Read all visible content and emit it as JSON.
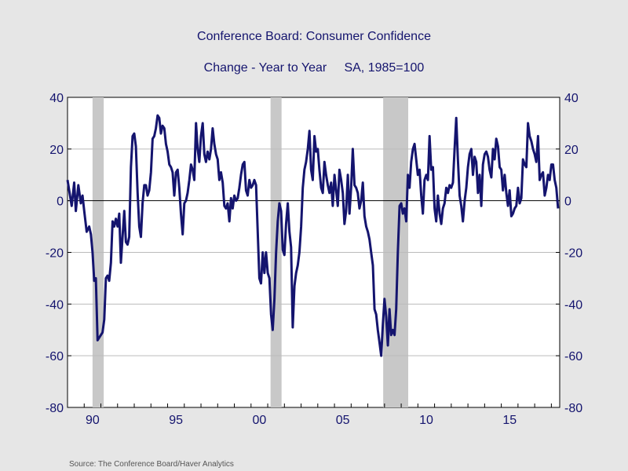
{
  "chart_data": {
    "type": "line",
    "title": "Conference Board: Consumer Confidence",
    "subtitle": "Change - Year to Year     SA, 1985=100",
    "source": "Source:  The Conference Board/Haver Analytics",
    "x_tick_labels": [
      "90",
      "95",
      "00",
      "05",
      "10",
      "15"
    ],
    "x_tick_years": [
      1990,
      1995,
      2000,
      2005,
      2010,
      2015
    ],
    "xlim": [
      1989.0,
      2018.5
    ],
    "ylim": [
      -80,
      40
    ],
    "y_ticks": [
      40,
      20,
      0,
      -20,
      -40,
      -60,
      -80
    ],
    "y_tick_labels": [
      "40",
      "20",
      "0",
      "-20",
      "-40",
      "-60",
      "-80"
    ],
    "recessions": [
      [
        1990.5,
        1991.17
      ],
      [
        2001.17,
        2001.83
      ],
      [
        2007.92,
        2009.42
      ]
    ],
    "grid": true,
    "series": [
      {
        "color": "#14146e",
        "points": [
          [
            1989.0,
            8
          ],
          [
            1989.25,
            -2
          ],
          [
            1989.4,
            7
          ],
          [
            1989.5,
            -4
          ],
          [
            1989.65,
            6
          ],
          [
            1989.8,
            -1
          ],
          [
            1989.9,
            2
          ],
          [
            1990.0,
            -4
          ],
          [
            1990.15,
            -12
          ],
          [
            1990.3,
            -10
          ],
          [
            1990.4,
            -13
          ],
          [
            1990.5,
            -20
          ],
          [
            1990.6,
            -31
          ],
          [
            1990.7,
            -30
          ],
          [
            1990.8,
            -54
          ],
          [
            1990.9,
            -53
          ],
          [
            1991.0,
            -52
          ],
          [
            1991.1,
            -51
          ],
          [
            1991.2,
            -46
          ],
          [
            1991.3,
            -30
          ],
          [
            1991.4,
            -29
          ],
          [
            1991.5,
            -31
          ],
          [
            1991.6,
            -24
          ],
          [
            1991.7,
            -8
          ],
          [
            1991.8,
            -10
          ],
          [
            1991.9,
            -7
          ],
          [
            1992.0,
            -10
          ],
          [
            1992.1,
            -5
          ],
          [
            1992.2,
            -24
          ],
          [
            1992.3,
            -14
          ],
          [
            1992.4,
            -4
          ],
          [
            1992.5,
            -16
          ],
          [
            1992.6,
            -17
          ],
          [
            1992.7,
            -14
          ],
          [
            1992.8,
            13
          ],
          [
            1992.9,
            25
          ],
          [
            1993.0,
            26
          ],
          [
            1993.1,
            21
          ],
          [
            1993.2,
            3
          ],
          [
            1993.3,
            -10
          ],
          [
            1993.4,
            -14
          ],
          [
            1993.5,
            -1
          ],
          [
            1993.6,
            6
          ],
          [
            1993.7,
            6
          ],
          [
            1993.8,
            2
          ],
          [
            1993.9,
            4
          ],
          [
            1994.0,
            11
          ],
          [
            1994.1,
            24
          ],
          [
            1994.2,
            25
          ],
          [
            1994.3,
            28
          ],
          [
            1994.4,
            33
          ],
          [
            1994.5,
            32
          ],
          [
            1994.6,
            26
          ],
          [
            1994.7,
            29
          ],
          [
            1994.8,
            28
          ],
          [
            1994.9,
            22
          ],
          [
            1995.0,
            19
          ],
          [
            1995.1,
            14
          ],
          [
            1995.2,
            13
          ],
          [
            1995.3,
            11
          ],
          [
            1995.4,
            2
          ],
          [
            1995.5,
            11
          ],
          [
            1995.6,
            12
          ],
          [
            1995.7,
            5
          ],
          [
            1995.8,
            -5
          ],
          [
            1995.9,
            -13
          ],
          [
            1996.0,
            -1
          ],
          [
            1996.1,
            0
          ],
          [
            1996.2,
            3
          ],
          [
            1996.3,
            8
          ],
          [
            1996.4,
            14
          ],
          [
            1996.5,
            12
          ],
          [
            1996.6,
            8
          ],
          [
            1996.7,
            30
          ],
          [
            1996.8,
            20
          ],
          [
            1996.9,
            15
          ],
          [
            1997.0,
            25
          ],
          [
            1997.1,
            30
          ],
          [
            1997.2,
            18
          ],
          [
            1997.3,
            15
          ],
          [
            1997.4,
            19
          ],
          [
            1997.5,
            16
          ],
          [
            1997.6,
            20
          ],
          [
            1997.7,
            28
          ],
          [
            1997.8,
            22
          ],
          [
            1997.9,
            18
          ],
          [
            1998.0,
            16
          ],
          [
            1998.1,
            8
          ],
          [
            1998.2,
            11
          ],
          [
            1998.3,
            7
          ],
          [
            1998.4,
            -2
          ],
          [
            1998.5,
            -3
          ],
          [
            1998.6,
            -1
          ],
          [
            1998.7,
            -8
          ],
          [
            1998.8,
            1
          ],
          [
            1998.9,
            -3
          ],
          [
            1999.0,
            2
          ],
          [
            1999.1,
            0
          ],
          [
            1999.2,
            1
          ],
          [
            1999.3,
            5
          ],
          [
            1999.4,
            10
          ],
          [
            1999.5,
            14
          ],
          [
            1999.6,
            15
          ],
          [
            1999.7,
            4
          ],
          [
            1999.8,
            2
          ],
          [
            1999.9,
            8
          ],
          [
            2000.0,
            5
          ],
          [
            2000.1,
            6
          ],
          [
            2000.2,
            8
          ],
          [
            2000.3,
            6
          ],
          [
            2000.4,
            -12
          ],
          [
            2000.5,
            -30
          ],
          [
            2000.6,
            -32
          ],
          [
            2000.7,
            -20
          ],
          [
            2000.8,
            -28
          ],
          [
            2000.9,
            -20
          ],
          [
            2001.0,
            -28
          ],
          [
            2001.1,
            -30
          ],
          [
            2001.2,
            -44
          ],
          [
            2001.3,
            -50
          ],
          [
            2001.4,
            -38
          ],
          [
            2001.5,
            -20
          ],
          [
            2001.6,
            -8
          ],
          [
            2001.7,
            -1
          ],
          [
            2001.8,
            -4
          ],
          [
            2001.9,
            -19
          ],
          [
            2002.0,
            -21
          ],
          [
            2002.1,
            -9
          ],
          [
            2002.2,
            -1
          ],
          [
            2002.3,
            -12
          ],
          [
            2002.4,
            -18
          ],
          [
            2002.5,
            -49
          ],
          [
            2002.6,
            -33
          ],
          [
            2002.7,
            -28
          ],
          [
            2002.8,
            -25
          ],
          [
            2002.9,
            -20
          ],
          [
            2003.0,
            -10
          ],
          [
            2003.1,
            5
          ],
          [
            2003.2,
            12
          ],
          [
            2003.3,
            15
          ],
          [
            2003.4,
            20
          ],
          [
            2003.5,
            27
          ],
          [
            2003.6,
            12
          ],
          [
            2003.7,
            8
          ],
          [
            2003.8,
            25
          ],
          [
            2003.9,
            19
          ],
          [
            2004.0,
            20
          ],
          [
            2004.1,
            12
          ],
          [
            2004.2,
            5
          ],
          [
            2004.3,
            3
          ],
          [
            2004.4,
            15
          ],
          [
            2004.5,
            10
          ],
          [
            2004.6,
            6
          ],
          [
            2004.7,
            3
          ],
          [
            2004.8,
            7
          ],
          [
            2004.9,
            -2
          ],
          [
            2005.0,
            10
          ],
          [
            2005.1,
            4
          ],
          [
            2005.2,
            -2
          ],
          [
            2005.3,
            12
          ],
          [
            2005.4,
            8
          ],
          [
            2005.5,
            3
          ],
          [
            2005.6,
            -9
          ],
          [
            2005.7,
            -4
          ],
          [
            2005.8,
            10
          ],
          [
            2005.9,
            -5
          ],
          [
            2006.0,
            5
          ],
          [
            2006.1,
            20
          ],
          [
            2006.2,
            6
          ],
          [
            2006.3,
            5
          ],
          [
            2006.4,
            3
          ],
          [
            2006.5,
            -3
          ],
          [
            2006.6,
            0
          ],
          [
            2006.7,
            7
          ],
          [
            2006.8,
            -6
          ],
          [
            2006.9,
            -10
          ],
          [
            2007.0,
            -12
          ],
          [
            2007.1,
            -15
          ],
          [
            2007.2,
            -20
          ],
          [
            2007.3,
            -25
          ],
          [
            2007.4,
            -42
          ],
          [
            2007.5,
            -44
          ],
          [
            2007.6,
            -50
          ],
          [
            2007.7,
            -55
          ],
          [
            2007.8,
            -60
          ],
          [
            2007.9,
            -48
          ],
          [
            2008.0,
            -38
          ],
          [
            2008.1,
            -45
          ],
          [
            2008.2,
            -56
          ],
          [
            2008.3,
            -42
          ],
          [
            2008.4,
            -52
          ],
          [
            2008.5,
            -50
          ],
          [
            2008.6,
            -52
          ],
          [
            2008.7,
            -42
          ],
          [
            2008.8,
            -20
          ],
          [
            2008.9,
            -2
          ],
          [
            2009.0,
            -1
          ],
          [
            2009.1,
            -5
          ],
          [
            2009.2,
            -3
          ],
          [
            2009.3,
            -8
          ],
          [
            2009.4,
            10
          ],
          [
            2009.5,
            5
          ],
          [
            2009.6,
            15
          ],
          [
            2009.7,
            20
          ],
          [
            2009.8,
            22
          ],
          [
            2009.9,
            16
          ],
          [
            2010.0,
            10
          ],
          [
            2010.1,
            12
          ],
          [
            2010.2,
            2
          ],
          [
            2010.3,
            -5
          ],
          [
            2010.4,
            8
          ],
          [
            2010.5,
            10
          ],
          [
            2010.6,
            8
          ],
          [
            2010.7,
            25
          ],
          [
            2010.8,
            12
          ],
          [
            2010.9,
            13
          ],
          [
            2011.0,
            -3
          ],
          [
            2011.1,
            -8
          ],
          [
            2011.2,
            2
          ],
          [
            2011.3,
            -5
          ],
          [
            2011.4,
            -9
          ],
          [
            2011.5,
            -3
          ],
          [
            2011.6,
            -1
          ],
          [
            2011.7,
            5
          ],
          [
            2011.8,
            3
          ],
          [
            2011.9,
            6
          ],
          [
            2012.0,
            5
          ],
          [
            2012.1,
            7
          ],
          [
            2012.2,
            20
          ],
          [
            2012.3,
            32
          ],
          [
            2012.4,
            16
          ],
          [
            2012.5,
            2
          ],
          [
            2012.6,
            -2
          ],
          [
            2012.7,
            -8
          ],
          [
            2012.8,
            0
          ],
          [
            2012.9,
            5
          ],
          [
            2013.0,
            13
          ],
          [
            2013.1,
            18
          ],
          [
            2013.2,
            20
          ],
          [
            2013.3,
            10
          ],
          [
            2013.4,
            17
          ],
          [
            2013.5,
            15
          ],
          [
            2013.6,
            3
          ],
          [
            2013.7,
            10
          ],
          [
            2013.8,
            -2
          ],
          [
            2013.9,
            14
          ],
          [
            2014.0,
            18
          ],
          [
            2014.1,
            19
          ],
          [
            2014.2,
            17
          ],
          [
            2014.3,
            12
          ],
          [
            2014.4,
            9
          ],
          [
            2014.5,
            20
          ],
          [
            2014.6,
            16
          ],
          [
            2014.7,
            24
          ],
          [
            2014.8,
            21
          ],
          [
            2014.9,
            13
          ],
          [
            2015.0,
            12
          ],
          [
            2015.1,
            4
          ],
          [
            2015.2,
            10
          ],
          [
            2015.3,
            3
          ],
          [
            2015.4,
            -2
          ],
          [
            2015.5,
            4
          ],
          [
            2015.6,
            -6
          ],
          [
            2015.7,
            -5
          ],
          [
            2015.8,
            -3
          ],
          [
            2015.9,
            -2
          ],
          [
            2016.0,
            5
          ],
          [
            2016.1,
            -1
          ],
          [
            2016.2,
            1
          ],
          [
            2016.3,
            16
          ],
          [
            2016.4,
            14
          ],
          [
            2016.5,
            13
          ],
          [
            2016.6,
            30
          ],
          [
            2016.7,
            25
          ],
          [
            2016.8,
            23
          ],
          [
            2016.9,
            20
          ],
          [
            2017.0,
            18
          ],
          [
            2017.1,
            15
          ],
          [
            2017.2,
            25
          ],
          [
            2017.3,
            8
          ],
          [
            2017.4,
            10
          ],
          [
            2017.5,
            11
          ],
          [
            2017.6,
            2
          ],
          [
            2017.7,
            5
          ],
          [
            2017.8,
            10
          ],
          [
            2017.9,
            8
          ],
          [
            2018.0,
            14
          ],
          [
            2018.1,
            14
          ],
          [
            2018.2,
            8
          ],
          [
            2018.3,
            5
          ],
          [
            2018.4,
            -3
          ]
        ]
      }
    ]
  }
}
